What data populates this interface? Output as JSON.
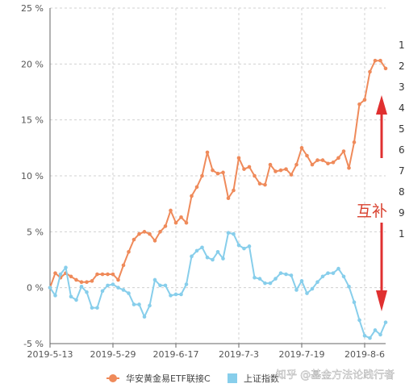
{
  "chart_data": {
    "type": "line",
    "x": [
      "2019-5-13",
      "2019-5-14",
      "2019-5-15",
      "2019-5-16",
      "2019-5-17",
      "2019-5-20",
      "2019-5-21",
      "2019-5-22",
      "2019-5-23",
      "2019-5-24",
      "2019-5-27",
      "2019-5-28",
      "2019-5-29",
      "2019-5-30",
      "2019-5-31",
      "2019-6-3",
      "2019-6-4",
      "2019-6-5",
      "2019-6-6",
      "2019-6-10",
      "2019-6-11",
      "2019-6-12",
      "2019-6-13",
      "2019-6-14",
      "2019-6-17",
      "2019-6-18",
      "2019-6-19",
      "2019-6-20",
      "2019-6-21",
      "2019-6-24",
      "2019-6-25",
      "2019-6-26",
      "2019-6-27",
      "2019-6-28",
      "2019-7-1",
      "2019-7-2",
      "2019-7-3",
      "2019-7-4",
      "2019-7-5",
      "2019-7-8",
      "2019-7-9",
      "2019-7-10",
      "2019-7-11",
      "2019-7-12",
      "2019-7-15",
      "2019-7-16",
      "2019-7-17",
      "2019-7-18",
      "2019-7-19",
      "2019-7-22",
      "2019-7-23",
      "2019-7-24",
      "2019-7-25",
      "2019-7-26",
      "2019-7-29",
      "2019-7-30",
      "2019-7-31",
      "2019-8-1",
      "2019-8-2",
      "2019-8-5",
      "2019-8-6",
      "2019-8-7",
      "2019-8-8",
      "2019-8-9",
      "2019-8-12"
    ],
    "x_ticks": [
      "2019-5-13",
      "2019-5-29",
      "2019-6-17",
      "2019-7-3",
      "2019-7-19",
      "2019-8-6"
    ],
    "series": [
      {
        "name": "华安黄金易ETF联接C",
        "color": "#ef8a5a",
        "values": [
          0.0,
          1.3,
          0.9,
          1.3,
          1.0,
          0.7,
          0.5,
          0.5,
          0.6,
          1.2,
          1.2,
          1.2,
          1.2,
          0.7,
          2.0,
          3.2,
          4.3,
          4.8,
          5.0,
          4.8,
          4.2,
          5.0,
          5.5,
          6.9,
          5.8,
          6.3,
          5.8,
          8.2,
          9.0,
          10.0,
          12.1,
          10.5,
          10.2,
          10.3,
          8.0,
          8.7,
          11.6,
          10.6,
          10.8,
          10.0,
          9.3,
          9.2,
          11.0,
          10.4,
          10.5,
          10.6,
          10.1,
          11.0,
          12.5,
          11.8,
          11.0,
          11.4,
          11.4,
          11.1,
          11.2,
          11.6,
          12.2,
          10.7,
          13.0,
          16.4,
          16.8,
          19.3,
          20.3,
          20.3,
          19.6
        ]
      },
      {
        "name": "上证指数",
        "color": "#87ceeb",
        "values": [
          0.0,
          -0.7,
          1.2,
          1.8,
          -0.8,
          -1.1,
          0.1,
          -0.4,
          -1.8,
          -1.8,
          -0.3,
          0.2,
          0.3,
          0.0,
          -0.2,
          -0.5,
          -1.5,
          -1.5,
          -2.6,
          -1.6,
          0.7,
          0.2,
          0.2,
          -0.7,
          -0.6,
          -0.6,
          0.3,
          2.8,
          3.3,
          3.6,
          2.7,
          2.5,
          3.2,
          2.6,
          4.9,
          4.8,
          3.8,
          3.5,
          3.7,
          0.9,
          0.8,
          0.4,
          0.4,
          0.8,
          1.3,
          1.2,
          1.1,
          -0.2,
          0.6,
          -0.5,
          -0.1,
          0.5,
          1.0,
          1.3,
          1.3,
          1.7,
          1.0,
          0.1,
          -1.3,
          -2.9,
          -4.3,
          -4.5,
          -3.8,
          -4.2,
          -3.1
        ]
      }
    ],
    "ylim": [
      -5,
      25
    ],
    "y_ticks": [
      -5,
      0,
      5,
      10,
      15,
      20,
      25
    ],
    "y_unit": "%",
    "grid": true,
    "legend_position": "bottom-center",
    "annotation": "互补",
    "right_cut_numbers": [
      "1",
      "2",
      "3",
      "4",
      "5",
      "6",
      "7",
      "8",
      "9",
      "1"
    ],
    "watermark": "知乎 @基金方法论践行者",
    "arrow_color": "#e03030"
  }
}
